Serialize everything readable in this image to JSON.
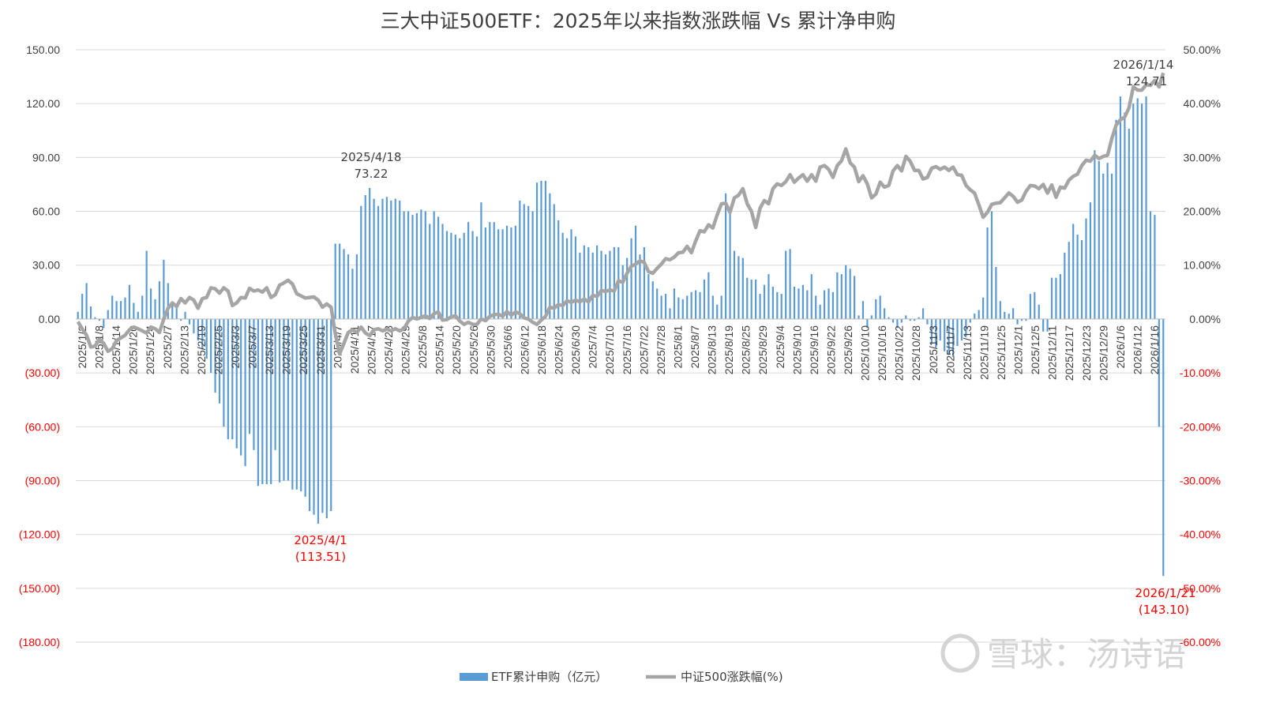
{
  "chart_data": {
    "type": "bar+line",
    "title": "三大中证500ETF：2025年以来指数涨跌幅 Vs 累计净申购",
    "y_left": {
      "lim": [
        -180,
        150
      ],
      "ticks": [
        "150.00",
        "120.00",
        "90.00",
        "60.00",
        "30.00",
        "0.00",
        "(30.00)",
        "(60.00)",
        "(90.00)",
        "(120.00)",
        "(150.00)",
        "(180.00)"
      ]
    },
    "y_right": {
      "lim": [
        -60,
        50
      ],
      "ticks": [
        "50.00%",
        "40.00%",
        "30.00%",
        "20.00%",
        "10.00%",
        "0.00%",
        "-10.00%",
        "-20.00%",
        "-30.00%",
        "-40.00%",
        "-50.00%",
        "-60.00%"
      ]
    },
    "x_tick_labels": [
      "2025/1/2",
      "2025/1/8",
      "2025/1/14",
      "2025/1/20",
      "2025/1/24",
      "2025/2/7",
      "2025/2/13",
      "2025/2/19",
      "2025/2/25",
      "2025/3/3",
      "2025/3/7",
      "2025/3/13",
      "2025/3/19",
      "2025/3/25",
      "2025/3/31",
      "2025/4/7",
      "2025/4/11",
      "2025/4/17",
      "2025/4/23",
      "2025/4/29",
      "2025/5/8",
      "2025/5/14",
      "2025/5/20",
      "2025/5/26",
      "2025/5/30",
      "2025/6/6",
      "2025/6/12",
      "2025/6/18",
      "2025/6/24",
      "2025/6/30",
      "2025/7/4",
      "2025/7/10",
      "2025/7/16",
      "2025/7/22",
      "2025/7/28",
      "2025/8/1",
      "2025/8/7",
      "2025/8/13",
      "2025/8/19",
      "2025/8/25",
      "2025/8/29",
      "2025/9/4",
      "2025/9/10",
      "2025/9/16",
      "2025/9/22",
      "2025/9/26",
      "2025/10/10",
      "2025/10/16",
      "2025/10/22",
      "2025/10/28",
      "2025/11/3",
      "2025/11/7",
      "2025/11/13",
      "2025/11/19",
      "2025/11/25",
      "2025/12/1",
      "2025/12/5",
      "2025/12/11",
      "2025/12/17",
      "2025/12/23",
      "2025/12/29",
      "2026/1/6",
      "2026/1/12",
      "2026/1/16"
    ],
    "series": [
      {
        "name": "ETF累计申购（亿元）",
        "type": "bar",
        "color": "#5b9bd5",
        "values": [
          4,
          14,
          20,
          7,
          1,
          -1,
          -5,
          5,
          13,
          10,
          10,
          12,
          19,
          9,
          4,
          13,
          38,
          17,
          11,
          21,
          33,
          20,
          9,
          6,
          -1,
          4,
          -3,
          -8,
          -12,
          -17,
          -22,
          -30,
          -41,
          -47,
          -60,
          -67,
          -67,
          -72,
          -76,
          -82,
          -64,
          -73,
          -93,
          -92,
          -92,
          -92,
          -73,
          -91,
          -90,
          -90,
          -95,
          -95,
          -96,
          -99,
          -107,
          -109,
          -114,
          -108,
          -111,
          -107,
          42,
          42,
          39,
          36,
          28,
          36,
          63,
          69,
          73,
          67,
          63,
          67,
          68,
          66,
          67,
          66,
          60,
          60,
          58,
          59,
          61,
          60,
          53,
          60,
          57,
          53,
          49,
          48,
          47,
          45,
          48,
          54,
          49,
          46,
          65,
          51,
          54,
          54,
          50,
          50,
          52,
          51,
          52,
          66,
          64,
          63,
          60,
          76,
          77,
          77,
          70,
          64,
          55,
          48,
          45,
          50,
          46,
          37,
          41,
          40,
          37,
          41,
          38,
          36,
          38,
          40,
          40,
          30,
          34,
          45,
          52,
          36,
          40,
          25,
          21,
          17,
          13,
          14,
          6,
          17,
          12,
          11,
          13,
          15,
          16,
          15,
          22,
          26,
          13,
          8,
          13,
          70,
          59,
          38,
          35,
          34,
          23,
          22,
          22,
          14,
          19,
          25,
          18,
          15,
          14,
          38,
          39,
          18,
          17,
          19,
          16,
          25,
          13,
          8,
          16,
          17,
          15,
          26,
          25,
          30,
          28,
          24,
          2,
          10,
          -5,
          2,
          11,
          13,
          6,
          1,
          -2,
          -5,
          -2,
          2,
          -1,
          -1,
          1,
          6,
          -3,
          -14,
          -16,
          -12,
          -18,
          -20,
          -21,
          -15,
          -12,
          -10,
          -2,
          3,
          5,
          12,
          51,
          60,
          29,
          10,
          4,
          3,
          6,
          -3,
          -1,
          -1,
          14,
          15,
          8,
          -7,
          -7,
          23,
          23,
          25,
          37,
          43,
          53,
          47,
          44,
          56,
          65,
          94,
          88,
          81,
          87,
          81,
          111,
          124,
          115,
          106,
          120,
          123,
          120,
          124,
          60,
          58,
          -60,
          -143.1
        ]
      },
      {
        "name": "中证500涨跌幅(%)",
        "type": "line",
        "color": "#a5a5a5",
        "values": [
          -0.5,
          -1.8,
          -3,
          -5.2,
          -5,
          -3.8,
          -4.5,
          -6,
          -5.5,
          -4,
          -3.5,
          -3,
          -2,
          -1.5,
          -1.8,
          -2.2,
          -2.6,
          -1.5,
          -1.8,
          -2.5,
          0,
          2,
          3,
          2.3,
          3.8,
          3,
          4,
          3.5,
          2,
          3.8,
          4,
          5.8,
          5.6,
          4.8,
          5.8,
          5.2,
          2.5,
          3,
          4,
          3.9,
          5.7,
          5.2,
          5.4,
          5,
          5.8,
          4,
          4.5,
          6.3,
          6.7,
          7.2,
          6.5,
          4.7,
          4.3,
          3.9,
          4,
          4.1,
          3.5,
          2.2,
          2.8,
          2.2,
          -2.8,
          -6.5,
          -4.5,
          -2.5,
          -2,
          -2.5,
          -1.5,
          -2.6,
          -3.1,
          -2,
          -1.8,
          -2.2,
          -1.9,
          -2.2,
          -1.8,
          -2.2,
          -1.8,
          -0.4,
          0.3,
          0,
          0.3,
          0.6,
          0.1,
          1,
          1.3,
          -0.2,
          -0.1,
          0.4,
          0.6,
          -0.4,
          -1,
          -0.6,
          -1,
          -1,
          0,
          -0.3,
          0.5,
          0.8,
          0.9,
          0.5,
          1.4,
          0.7,
          1.3,
          1,
          0.2,
          0,
          -0.6,
          -1,
          -0.2,
          0.5,
          2.2,
          2,
          2.7,
          2.5,
          3.4,
          3.1,
          3.5,
          3.2,
          3.7,
          3.2,
          4.4,
          4.2,
          5.3,
          5.1,
          5.4,
          5.2,
          7.1,
          6.8,
          8.5,
          9.8,
          10.2,
          10.8,
          10.5,
          8.8,
          8.5,
          9.4,
          10.2,
          11.2,
          11,
          11.5,
          12.3,
          12.4,
          13.5,
          12.3,
          14.5,
          16.4,
          16.2,
          17.5,
          16.9,
          19.3,
          21.4,
          21.5,
          19.8,
          22.5,
          23,
          24.2,
          21.4,
          20,
          17,
          20.6,
          22,
          21.4,
          24.2,
          25.1,
          24.8,
          25.5,
          26.8,
          25.4,
          26.2,
          26.8,
          25.6,
          26.8,
          25.6,
          28.2,
          28.5,
          27.8,
          26.3,
          28.5,
          29.4,
          31.6,
          29,
          28.2,
          25.5,
          26.6,
          25.1,
          22.5,
          23.2,
          25.4,
          24.5,
          24.8,
          27.5,
          28.5,
          27.5,
          30.2,
          29.3,
          27.6,
          27.6,
          26,
          26.3,
          28,
          28.3,
          27.8,
          28.2,
          27.6,
          28.2,
          26.8,
          26.7,
          24.8,
          24,
          23.4,
          21.2,
          18.9,
          19.8,
          21.3,
          21.5,
          21.6,
          22.5,
          23.4,
          22.8,
          21.7,
          22.1,
          23.7,
          24.8,
          24.7,
          24.2,
          25,
          23.4,
          24.9,
          22.6,
          24.5,
          24.3,
          25.8,
          26.5,
          26.9,
          28.5,
          29.5,
          29.3,
          30.4,
          29.8,
          30.2,
          30.4,
          33.5,
          36,
          37,
          37.5,
          39.2,
          43.1,
          42.5,
          42.5,
          43.5,
          43.4,
          44.3,
          43.1,
          45.7
        ]
      }
    ],
    "annotations": [
      {
        "date": "2025/4/18",
        "value": "73.22"
      },
      {
        "date": "2025/4/1",
        "value": "(113.51)"
      },
      {
        "date": "2026/1/14",
        "value": "124.71"
      },
      {
        "date": "2026/1/21",
        "value": "(143.10)"
      }
    ],
    "watermark": "雪球：汤诗语",
    "grid": true,
    "legend_position": "bottom"
  }
}
